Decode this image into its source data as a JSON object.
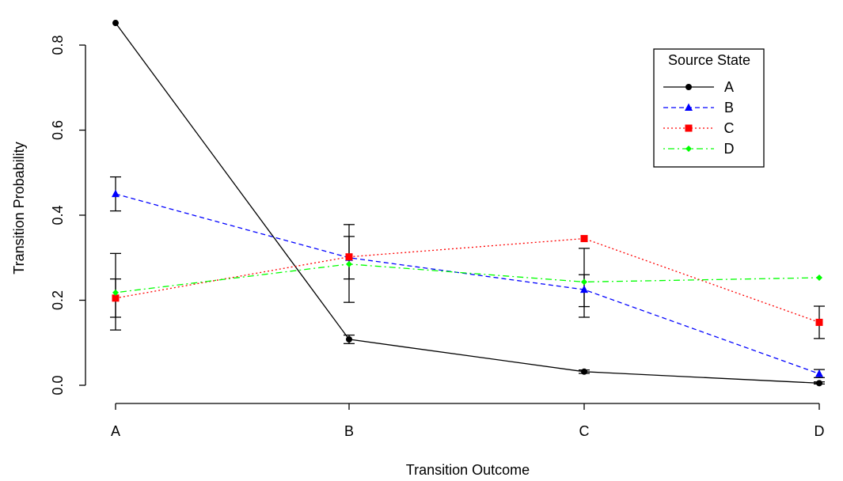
{
  "chart_data": {
    "type": "line",
    "title": "",
    "xlabel": "Transition Outcome",
    "ylabel": "Transition Probability",
    "categories": [
      "A",
      "B",
      "C",
      "D"
    ],
    "ylim": [
      0,
      0.85
    ],
    "yticks": [
      "0.0",
      "0.2",
      "0.4",
      "0.6",
      "0.8"
    ],
    "grid": false,
    "legend": {
      "title": "Source State",
      "placement": "top-right"
    },
    "series": [
      {
        "name": "A",
        "color": "#000000",
        "marker": "circle",
        "line_style": "solid",
        "values": [
          0.852,
          0.108,
          0.032,
          0.005
        ],
        "err_low": [
          null,
          0.098,
          0.028,
          0.003
        ],
        "err_high": [
          null,
          0.118,
          0.036,
          0.008
        ]
      },
      {
        "name": "B",
        "color": "#0000ff",
        "marker": "triangle",
        "line_style": "dashed",
        "values": [
          0.45,
          0.3,
          0.225,
          0.027
        ],
        "err_low": [
          0.41,
          0.25,
          0.16,
          0.018
        ],
        "err_high": [
          0.49,
          0.35,
          0.26,
          0.037
        ]
      },
      {
        "name": "C",
        "color": "#ff0000",
        "marker": "square",
        "line_style": "dotted",
        "values": [
          0.205,
          0.302,
          0.345,
          0.148
        ],
        "err_low": [
          0.13,
          0.195,
          null,
          0.11
        ],
        "err_high": [
          0.31,
          0.378,
          null,
          0.186
        ]
      },
      {
        "name": "D",
        "color": "#00ff00",
        "marker": "diamond",
        "line_style": "dotdash",
        "values": [
          0.218,
          0.285,
          0.243,
          0.253
        ],
        "err_low": [
          0.16,
          null,
          0.185,
          null
        ],
        "err_high": [
          0.25,
          null,
          0.322,
          null
        ]
      }
    ]
  }
}
